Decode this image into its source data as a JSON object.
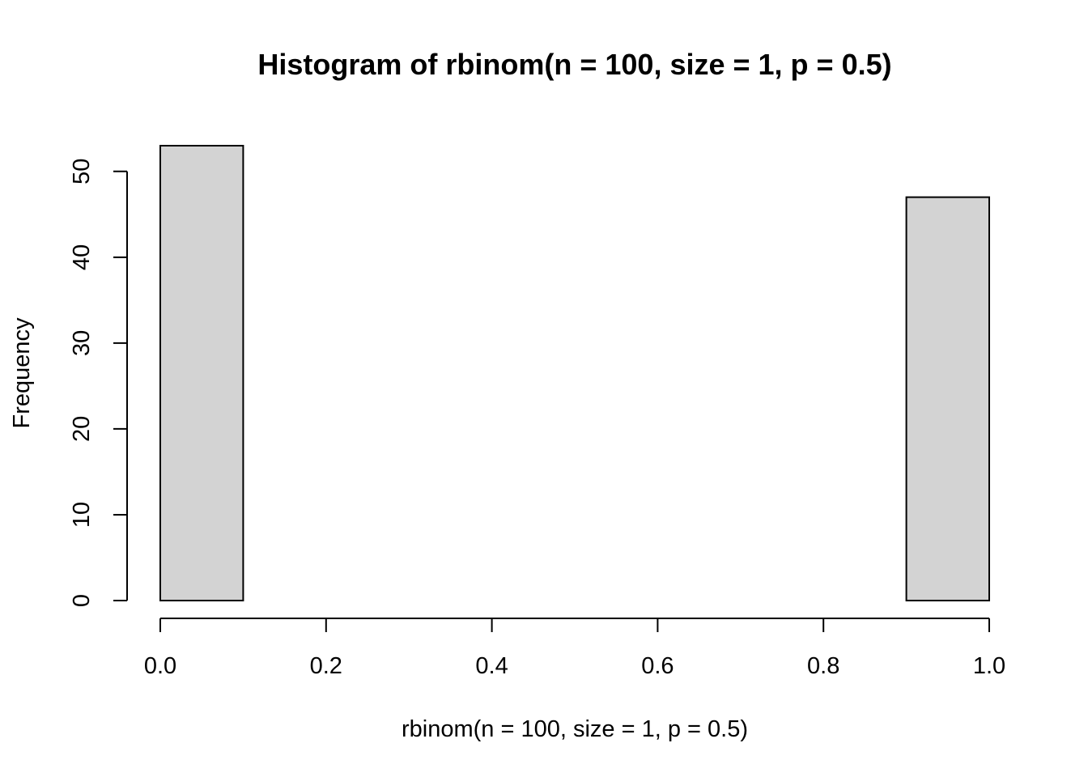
{
  "chart_data": {
    "type": "bar",
    "title": "Histogram of rbinom(n = 100, size = 1, p = 0.5)",
    "xlabel": "rbinom(n = 100, size = 1, p = 0.5)",
    "ylabel": "Frequency",
    "bins": [
      {
        "start": 0.0,
        "end": 0.1,
        "count": 53
      },
      {
        "start": 0.1,
        "end": 0.2,
        "count": 0
      },
      {
        "start": 0.2,
        "end": 0.3,
        "count": 0
      },
      {
        "start": 0.3,
        "end": 0.4,
        "count": 0
      },
      {
        "start": 0.4,
        "end": 0.5,
        "count": 0
      },
      {
        "start": 0.5,
        "end": 0.6,
        "count": 0
      },
      {
        "start": 0.6,
        "end": 0.7,
        "count": 0
      },
      {
        "start": 0.7,
        "end": 0.8,
        "count": 0
      },
      {
        "start": 0.8,
        "end": 0.9,
        "count": 0
      },
      {
        "start": 0.9,
        "end": 1.0,
        "count": 47
      }
    ],
    "xlim": [
      0.0,
      1.0
    ],
    "ylim": [
      0,
      53
    ],
    "x_ticks": [
      0.0,
      0.2,
      0.4,
      0.6,
      0.8,
      1.0
    ],
    "x_tick_labels": [
      "0.0",
      "0.2",
      "0.4",
      "0.6",
      "0.8",
      "1.0"
    ],
    "y_ticks": [
      0,
      10,
      20,
      30,
      40,
      50
    ],
    "y_tick_labels": [
      "0",
      "10",
      "20",
      "30",
      "40",
      "50"
    ],
    "grid": false,
    "bar_fill": "#d3d3d3",
    "bar_stroke": "#000000"
  }
}
